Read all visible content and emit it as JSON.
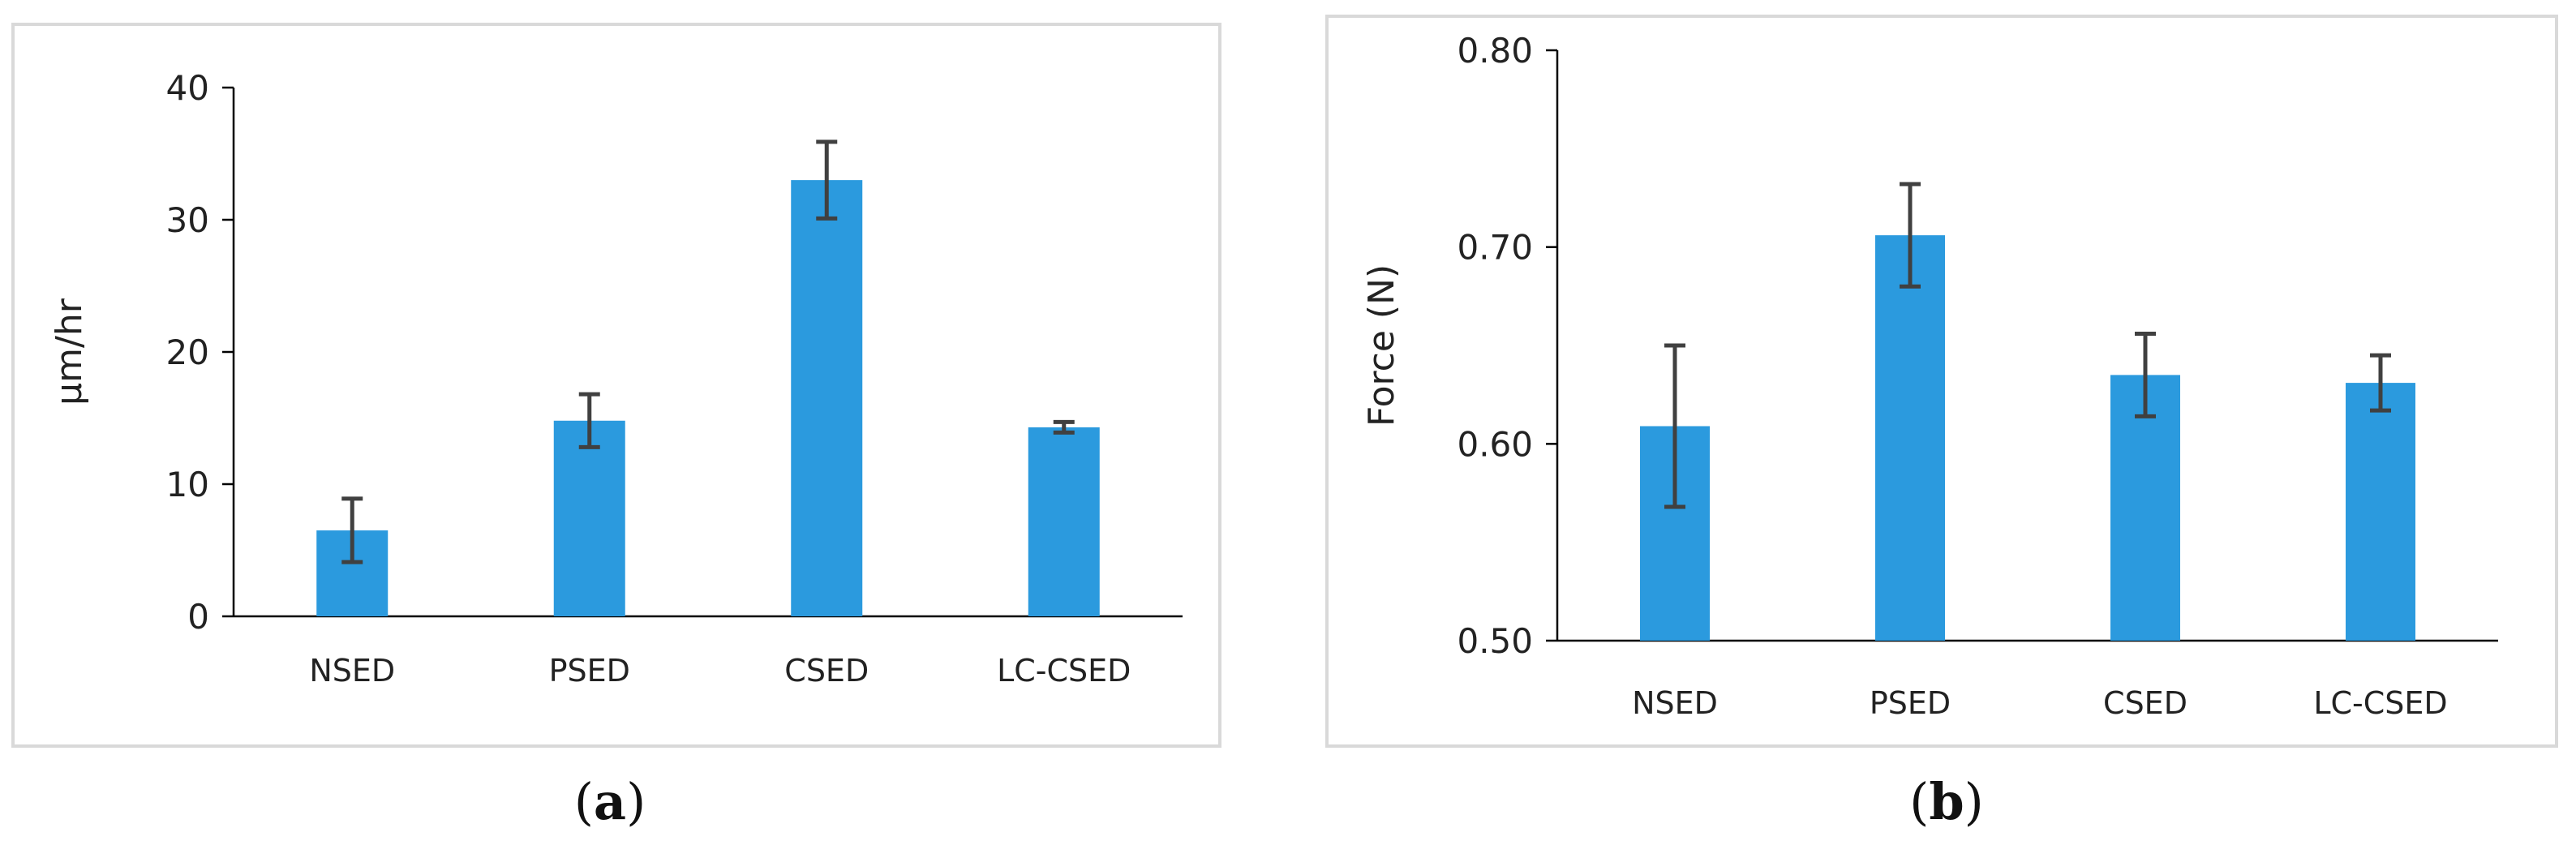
{
  "chart_data": [
    {
      "id": "a",
      "type": "bar",
      "caption_open": "(",
      "caption_letter": "a",
      "caption_close": ")",
      "ylabel": "µm/hr",
      "ylim": [
        0,
        40
      ],
      "yticks": [
        0,
        10,
        20,
        30,
        40
      ],
      "ytick_labels": [
        "0",
        "10",
        "20",
        "30",
        "40"
      ],
      "categories": [
        "NSED",
        "PSED",
        "CSED",
        "LC-CSED"
      ],
      "values": [
        6.5,
        14.8,
        33.0,
        14.3
      ],
      "errors": [
        2.4,
        2.0,
        2.9,
        0.4
      ],
      "color": "#2b9ade"
    },
    {
      "id": "b",
      "type": "bar",
      "caption_open": "(",
      "caption_letter": "b",
      "caption_close": ")",
      "ylabel": "Force (N)",
      "ylim": [
        0.5,
        0.8
      ],
      "yticks": [
        0.5,
        0.6,
        0.7,
        0.8
      ],
      "ytick_labels": [
        "0.50",
        "0.60",
        "0.70",
        "0.80"
      ],
      "categories": [
        "NSED",
        "PSED",
        "CSED",
        "LC-CSED"
      ],
      "values": [
        0.609,
        0.706,
        0.635,
        0.631
      ],
      "errors": [
        0.041,
        0.026,
        0.021,
        0.014
      ],
      "color": "#2b9ade"
    }
  ]
}
